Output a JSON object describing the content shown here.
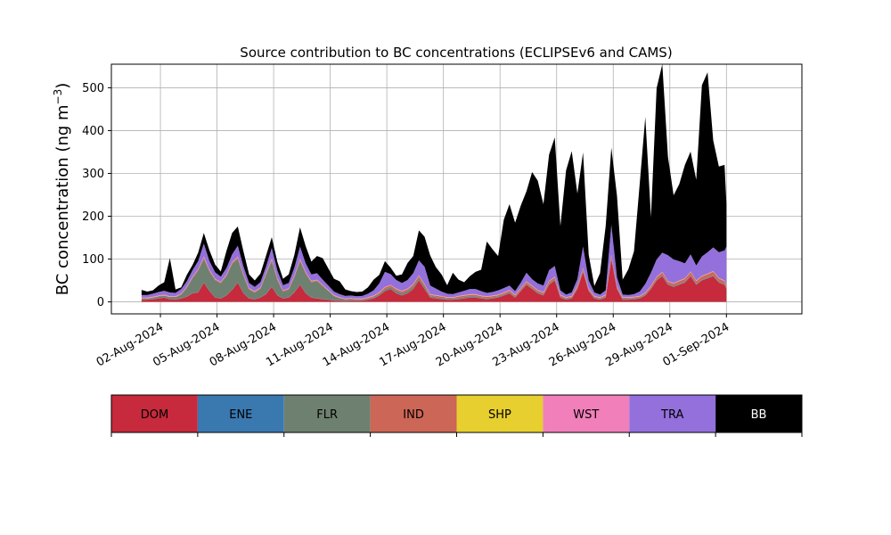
{
  "chart_data": {
    "type": "area",
    "title": "Source contribution to BC concentrations (ECLIPSEv6 and CAMS)",
    "ylabel_main": "BC concentration (ng m",
    "ylabel_sup": "−3",
    "ylabel_close": ")",
    "xlabel": "",
    "ylim": [
      -28,
      555
    ],
    "xlim": [
      -2.6,
      34.0
    ],
    "yticks": [
      0,
      100,
      200,
      300,
      400,
      500
    ],
    "xticks": [
      {
        "label": "02-Aug-2024",
        "day": 0
      },
      {
        "label": "05-Aug-2024",
        "day": 3
      },
      {
        "label": "08-Aug-2024",
        "day": 6
      },
      {
        "label": "11-Aug-2024",
        "day": 9
      },
      {
        "label": "14-Aug-2024",
        "day": 12
      },
      {
        "label": "17-Aug-2024",
        "day": 15
      },
      {
        "label": "20-Aug-2024",
        "day": 18
      },
      {
        "label": "23-Aug-2024",
        "day": 21
      },
      {
        "label": "26-Aug-2024",
        "day": 24
      },
      {
        "label": "29-Aug-2024",
        "day": 27
      },
      {
        "label": "01-Sep-2024",
        "day": 30
      }
    ],
    "grid": true,
    "stack_order": [
      "DOM",
      "ENE",
      "FLR",
      "IND",
      "SHP",
      "WST",
      "TRA",
      "BB"
    ],
    "colors": {
      "DOM": "#c62a3c",
      "ENE": "#3a78b0",
      "FLR": "#6e8070",
      "IND": "#cc6656",
      "SHP": "#e6cf2e",
      "WST": "#f07fba",
      "TRA": "#9370db",
      "BB": "#000000"
    },
    "legend": [
      {
        "name": "DOM",
        "color": "#c62a3c",
        "text_color": "#000000"
      },
      {
        "name": "ENE",
        "color": "#3a78b0",
        "text_color": "#000000"
      },
      {
        "name": "FLR",
        "color": "#6e8070",
        "text_color": "#000000"
      },
      {
        "name": "IND",
        "color": "#cc6656",
        "text_color": "#000000"
      },
      {
        "name": "SHP",
        "color": "#e6cf2e",
        "text_color": "#000000"
      },
      {
        "name": "WST",
        "color": "#f07fba",
        "text_color": "#000000"
      },
      {
        "name": "TRA",
        "color": "#9370db",
        "text_color": "#000000"
      },
      {
        "name": "BB",
        "color": "#000000",
        "text_color": "#ffffff"
      }
    ],
    "days": [
      -1.0,
      -0.7,
      -0.4,
      -0.1,
      0.2,
      0.5,
      0.8,
      1.1,
      1.4,
      1.7,
      2.0,
      2.3,
      2.6,
      2.9,
      3.2,
      3.5,
      3.8,
      4.1,
      4.4,
      4.7,
      5.0,
      5.3,
      5.6,
      5.9,
      6.2,
      6.5,
      6.8,
      7.1,
      7.4,
      7.7,
      8.0,
      8.3,
      8.6,
      8.9,
      9.2,
      9.5,
      9.8,
      10.1,
      10.4,
      10.7,
      11.0,
      11.3,
      11.6,
      11.9,
      12.2,
      12.5,
      12.8,
      13.1,
      13.4,
      13.7,
      14.0,
      14.3,
      14.6,
      14.9,
      15.2,
      15.5,
      15.8,
      16.1,
      16.4,
      16.7,
      17.0,
      17.3,
      17.6,
      17.9,
      18.2,
      18.5,
      18.8,
      19.1,
      19.4,
      19.7,
      20.0,
      20.3,
      20.6,
      20.9,
      21.2,
      21.5,
      21.8,
      22.1,
      22.4,
      22.7,
      23.0,
      23.3,
      23.6,
      23.9,
      24.2,
      24.5,
      24.8,
      25.1,
      25.4,
      25.7,
      26.0,
      26.3,
      26.6,
      26.9,
      27.2,
      27.5,
      27.8,
      28.1,
      28.4,
      28.7,
      29.0,
      29.3,
      29.6,
      29.9,
      30.0
    ],
    "series": [
      {
        "name": "DOM",
        "values": [
          5,
          5,
          6,
          8,
          10,
          6,
          5,
          8,
          12,
          20,
          22,
          45,
          25,
          10,
          8,
          15,
          28,
          45,
          20,
          8,
          6,
          10,
          18,
          35,
          15,
          8,
          10,
          22,
          40,
          20,
          10,
          8,
          6,
          5,
          3,
          3,
          2,
          3,
          3,
          3,
          5,
          8,
          15,
          25,
          30,
          20,
          15,
          20,
          30,
          50,
          30,
          10,
          8,
          6,
          5,
          5,
          6,
          8,
          10,
          10,
          8,
          6,
          8,
          10,
          15,
          20,
          10,
          25,
          40,
          30,
          20,
          15,
          40,
          50,
          10,
          5,
          8,
          30,
          70,
          25,
          8,
          5,
          10,
          100,
          30,
          5,
          5,
          6,
          8,
          15,
          30,
          50,
          60,
          40,
          35,
          40,
          45,
          60,
          40,
          50,
          55,
          60,
          45,
          40,
          30
        ]
      },
      {
        "name": "ENE",
        "values": [
          0.5,
          0.5,
          0.5,
          0.5,
          0.5,
          0.5,
          0.5,
          0.5,
          0.5,
          0.5,
          0.5,
          0.5,
          0.5,
          0.5,
          0.5,
          0.5,
          0.5,
          0.5,
          0.5,
          0.5,
          0.5,
          0.5,
          0.5,
          0.5,
          0.5,
          0.5,
          0.5,
          0.5,
          0.5,
          0.5,
          0.5,
          0.5,
          0.5,
          0.5,
          0.5,
          0.5,
          0.5,
          0.5,
          0.5,
          0.5,
          0.5,
          0.5,
          0.5,
          0.5,
          0.5,
          0.5,
          0.5,
          0.5,
          0.5,
          0.5,
          0.5,
          0.5,
          0.5,
          0.5,
          0.5,
          0.5,
          0.5,
          0.5,
          0.5,
          0.5,
          0.5,
          0.5,
          0.5,
          0.5,
          0.5,
          0.5,
          0.5,
          0.5,
          0.5,
          0.5,
          0.5,
          0.5,
          0.5,
          0.5,
          0.5,
          0.5,
          0.5,
          0.5,
          0.5,
          0.5,
          0.5,
          0.5,
          0.5,
          0.5,
          0.5,
          0.5,
          0.5,
          0.5,
          0.5,
          0.5,
          0.5,
          0.5,
          0.5,
          0.5,
          0.5,
          0.5,
          0.5,
          0.5,
          0.5,
          0.5,
          0.5,
          0.5,
          0.5,
          0.5,
          0.5
        ]
      },
      {
        "name": "FLR",
        "values": [
          2,
          2,
          3,
          4,
          4,
          4,
          5,
          8,
          20,
          35,
          50,
          55,
          45,
          40,
          35,
          45,
          60,
          55,
          40,
          20,
          15,
          20,
          45,
          60,
          35,
          15,
          18,
          35,
          55,
          45,
          35,
          40,
          30,
          20,
          10,
          5,
          3,
          3,
          2,
          2,
          2,
          3,
          3,
          4,
          4,
          5,
          5,
          5,
          5,
          5,
          5,
          3,
          3,
          3,
          2,
          2,
          3,
          3,
          3,
          3,
          2,
          2,
          2,
          2,
          2,
          2,
          2,
          2,
          2,
          2,
          2,
          2,
          2,
          2,
          2,
          2,
          2,
          2,
          2,
          2,
          2,
          2,
          2,
          2,
          2,
          2,
          2,
          2,
          2,
          2,
          2,
          2,
          2,
          2,
          2,
          2,
          2,
          2,
          2,
          2,
          2,
          2,
          2,
          2,
          2
        ]
      },
      {
        "name": "IND",
        "values": [
          1,
          1,
          1,
          1,
          1,
          1,
          1,
          2,
          2,
          2,
          3,
          3,
          3,
          2,
          2,
          2,
          3,
          3,
          3,
          2,
          2,
          2,
          3,
          3,
          3,
          2,
          2,
          3,
          3,
          3,
          2,
          2,
          2,
          1,
          1,
          1,
          1,
          1,
          1,
          1,
          2,
          2,
          3,
          4,
          4,
          4,
          4,
          4,
          5,
          5,
          5,
          3,
          3,
          3,
          2,
          2,
          3,
          3,
          3,
          3,
          3,
          3,
          3,
          3,
          3,
          4,
          3,
          4,
          4,
          4,
          4,
          4,
          5,
          5,
          3,
          2,
          2,
          4,
          5,
          3,
          2,
          2,
          3,
          6,
          3,
          2,
          2,
          2,
          2,
          3,
          4,
          5,
          6,
          5,
          5,
          6,
          6,
          7,
          6,
          7,
          7,
          8,
          7,
          6,
          5
        ]
      },
      {
        "name": "SHP",
        "values": [
          0.5,
          0.5,
          0.5,
          0.5,
          0.5,
          0.5,
          0.5,
          0.5,
          0.5,
          0.5,
          0.5,
          0.5,
          0.5,
          0.5,
          0.5,
          0.5,
          0.5,
          0.5,
          0.5,
          0.5,
          0.5,
          0.5,
          0.5,
          0.5,
          0.5,
          0.5,
          0.5,
          0.5,
          0.5,
          0.5,
          0.5,
          0.5,
          0.5,
          0.5,
          0.5,
          0.5,
          0.5,
          0.5,
          0.5,
          0.5,
          0.5,
          0.5,
          0.5,
          0.5,
          0.5,
          0.5,
          0.5,
          0.5,
          0.5,
          0.5,
          0.5,
          0.5,
          0.5,
          0.5,
          0.5,
          0.5,
          0.5,
          0.5,
          0.5,
          0.5,
          0.5,
          0.5,
          0.5,
          0.5,
          0.5,
          0.5,
          0.5,
          0.5,
          0.5,
          0.5,
          0.5,
          0.5,
          0.5,
          0.5,
          0.5,
          0.5,
          0.5,
          0.5,
          0.5,
          0.5,
          0.5,
          0.5,
          0.5,
          0.5,
          0.5,
          0.5,
          0.5,
          0.5,
          0.5,
          0.5,
          0.5,
          0.5,
          0.5,
          0.5,
          0.5,
          0.5,
          0.5,
          0.5,
          0.5,
          0.5,
          0.5,
          0.5,
          0.5,
          0.5,
          0.5
        ]
      },
      {
        "name": "WST",
        "values": [
          1,
          1,
          1,
          1,
          1,
          1,
          1,
          1,
          1,
          1,
          1,
          2,
          1,
          1,
          1,
          1,
          1,
          2,
          1,
          1,
          1,
          1,
          1,
          2,
          1,
          1,
          1,
          1,
          2,
          1,
          1,
          1,
          1,
          1,
          1,
          1,
          1,
          1,
          1,
          1,
          1,
          1,
          1,
          1,
          1,
          1,
          1,
          1,
          1,
          1,
          1,
          1,
          1,
          1,
          1,
          1,
          1,
          1,
          1,
          1,
          1,
          1,
          1,
          1,
          1,
          1,
          1,
          1,
          1,
          1,
          1,
          1,
          1,
          1,
          1,
          1,
          1,
          1,
          1,
          1,
          1,
          1,
          1,
          1,
          1,
          1,
          1,
          1,
          1,
          1,
          1,
          1,
          1,
          1,
          1,
          1,
          1,
          1,
          1,
          1,
          1,
          1,
          1,
          1,
          1
        ]
      },
      {
        "name": "TRA",
        "values": [
          6,
          6,
          7,
          8,
          9,
          9,
          8,
          10,
          12,
          15,
          18,
          30,
          20,
          15,
          12,
          15,
          18,
          25,
          18,
          12,
          10,
          12,
          15,
          25,
          18,
          12,
          12,
          18,
          28,
          20,
          15,
          15,
          12,
          10,
          8,
          7,
          6,
          6,
          5,
          6,
          8,
          12,
          20,
          35,
          25,
          20,
          18,
          20,
          25,
          35,
          40,
          20,
          15,
          10,
          8,
          7,
          8,
          10,
          12,
          12,
          10,
          8,
          8,
          10,
          10,
          10,
          8,
          12,
          20,
          15,
          15,
          15,
          25,
          25,
          10,
          6,
          8,
          15,
          50,
          18,
          8,
          6,
          10,
          70,
          20,
          6,
          5,
          6,
          10,
          20,
          30,
          40,
          45,
          60,
          55,
          45,
          35,
          40,
          35,
          45,
          50,
          55,
          60,
          70,
          90
        ]
      },
      {
        "name": "BB",
        "values": [
          12,
          8,
          8,
          15,
          20,
          80,
          8,
          4,
          15,
          12,
          20,
          25,
          25,
          18,
          12,
          40,
          50,
          45,
          35,
          20,
          15,
          20,
          25,
          25,
          20,
          15,
          20,
          30,
          45,
          40,
          30,
          40,
          50,
          40,
          30,
          30,
          15,
          10,
          10,
          10,
          15,
          25,
          20,
          25,
          15,
          10,
          20,
          40,
          40,
          70,
          70,
          70,
          50,
          40,
          20,
          50,
          30,
          20,
          30,
          40,
          50,
          120,
          100,
          80,
          160,
          190,
          160,
          180,
          190,
          250,
          240,
          190,
          270,
          300,
          150,
          290,
          330,
          200,
          220,
          60,
          15,
          50,
          150,
          180,
          190,
          35,
          60,
          100,
          250,
          390,
          130,
          400,
          440,
          230,
          150,
          180,
          230,
          240,
          200,
          400,
          420,
          250,
          200,
          200,
          100
        ]
      }
    ]
  },
  "legend_bar": {
    "items": [
      "DOM",
      "ENE",
      "FLR",
      "IND",
      "SHP",
      "WST",
      "TRA",
      "BB"
    ]
  }
}
